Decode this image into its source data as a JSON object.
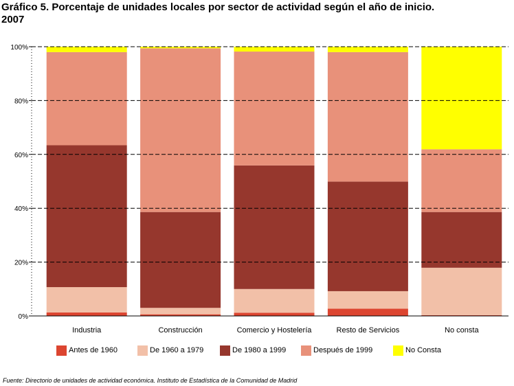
{
  "title_line1": "Gráfico 5. Porcentaje de unidades locales por sector de actividad según el año de inicio.",
  "title_line2": "2007",
  "source": "Fuente: Directorio de unidades de actividad económica. Instituto de Estadística de la Comunidad de Madrid",
  "colors": {
    "antes_1960": "#dc4530",
    "de_1960_1979": "#f2c0a8",
    "de_1980_1999": "#96372d",
    "despues_1999": "#e8917a",
    "no_consta": "#ffff00"
  },
  "chart_data": {
    "type": "bar",
    "stacked": true,
    "percent": true,
    "categories": [
      "Industria",
      "Construcción",
      "Comercio y Hostelería",
      "Resto de Servicios",
      "No consta"
    ],
    "series": [
      {
        "name": "Antes de 1960",
        "color": "#dc4530",
        "values": [
          1.3,
          0.6,
          1.2,
          2.7,
          0.3
        ]
      },
      {
        "name": "De 1960 a 1979",
        "color": "#f2c0a8",
        "values": [
          9.4,
          2.4,
          8.8,
          6.5,
          17.6
        ]
      },
      {
        "name": "De 1980 a 1999",
        "color": "#96372d",
        "values": [
          52.7,
          35.6,
          45.9,
          40.7,
          20.7
        ]
      },
      {
        "name": "Después de 1999",
        "color": "#e8917a",
        "values": [
          34.6,
          60.8,
          42.3,
          48.1,
          23.3
        ]
      },
      {
        "name": "No Consta",
        "color": "#ffff00",
        "values": [
          2.0,
          0.6,
          1.8,
          2.0,
          38.1
        ]
      }
    ],
    "ylim": [
      0,
      100
    ],
    "yticks": [
      "0%",
      "20%",
      "40%",
      "60%",
      "80%",
      "100%"
    ],
    "grid": true,
    "legend_position": "bottom"
  }
}
